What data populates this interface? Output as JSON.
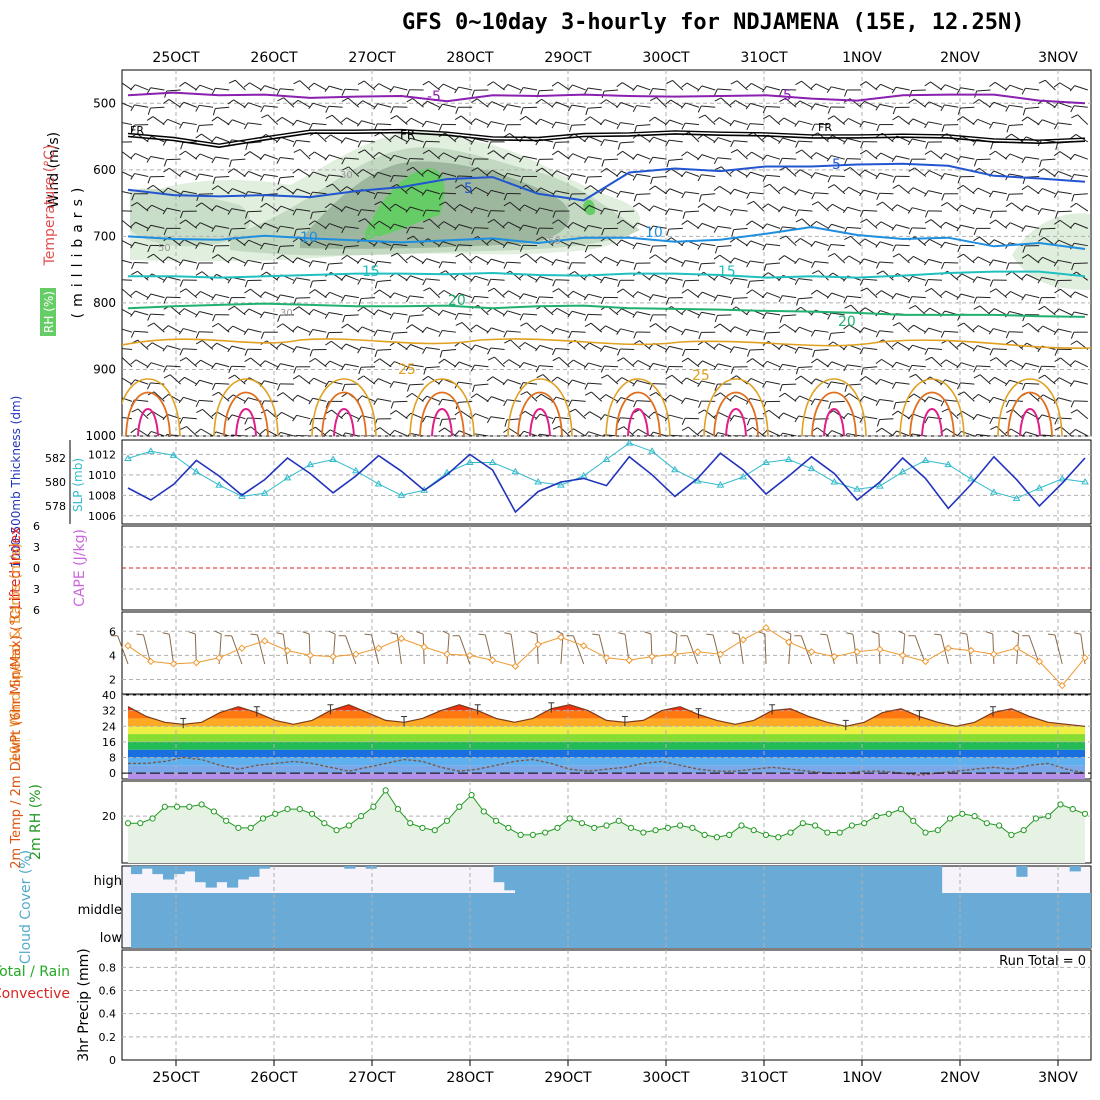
{
  "title": "GFS 0~10day 3-hourly for NDJAMENA (15E, 12.25N)",
  "colors": {
    "isotherm_m5": "#8a1fb0",
    "isotherm_5": "#2255d0",
    "isotherm_10": "#1e8fe0",
    "isotherm_15": "#20c0c0",
    "isotherm_20": "#20b070",
    "isotherm_25": "#e0a020",
    "isotherm_30": "#e07020",
    "isotherm_35": "#e0208a",
    "freezing": "#000000",
    "rh": "#44bb44",
    "thickness": "#2233bb",
    "slp": "#33bbcc",
    "lifted_index": "#dd2222",
    "cape": "#cc66dd",
    "wind": "#ee9933",
    "temp": "#dd5511",
    "rh2m": "#229922",
    "cloud": "#6aaad6",
    "precip_total": "#22aa22",
    "precip_convective": "#dd2222"
  },
  "chart_data": [
    {
      "panel": "upper-air",
      "type": "contour",
      "xlabel_ticks": [
        "25OCT",
        "26OCT",
        "27OCT",
        "28OCT",
        "29OCT",
        "30OCT",
        "31OCT",
        "1NOV",
        "2NOV",
        "3NOV"
      ],
      "ylabel": "(millibars)",
      "y_ticks": [
        500,
        600,
        700,
        800,
        900,
        1000
      ],
      "ylim": [
        1000,
        450
      ],
      "legend_labels": [
        "Wind (m/s)",
        "Temperature (°C)",
        "RH (%)"
      ],
      "contour_labels": [
        "-5",
        "5",
        "10",
        "15",
        "20",
        "25",
        "FR",
        "30",
        "50"
      ],
      "isotherms": [
        {
          "name": "-5",
          "pressure_mb": [
            488,
            484,
            488,
            487,
            492,
            490,
            489,
            497,
            488,
            489,
            487,
            489,
            490,
            489,
            488,
            493,
            496,
            488,
            487,
            487,
            496,
            500
          ]
        },
        {
          "name": "FR",
          "pressure_mb": [
            550,
            556,
            566,
            555,
            545,
            545,
            544,
            548,
            555,
            556,
            550,
            549,
            546,
            548,
            549,
            552,
            552,
            551,
            552,
            558,
            560,
            557
          ]
        },
        {
          "name": "5",
          "pressure_mb": [
            630,
            638,
            640,
            638,
            641,
            632,
            626,
            614,
            611,
            636,
            646,
            604,
            598,
            602,
            595,
            595,
            592,
            591,
            594,
            609,
            613,
            618
          ]
        },
        {
          "name": "10",
          "pressure_mb": [
            700,
            704,
            705,
            699,
            703,
            706,
            709,
            706,
            703,
            710,
            702,
            702,
            708,
            705,
            696,
            686,
            698,
            704,
            702,
            715,
            710,
            719
          ]
        },
        {
          "name": "15",
          "pressure_mb": [
            760,
            760,
            762,
            760,
            758,
            756,
            756,
            757,
            755,
            758,
            759,
            756,
            756,
            758,
            762,
            760,
            762,
            759,
            755,
            753,
            753,
            760
          ]
        },
        {
          "name": "20",
          "pressure_mb": [
            808,
            805,
            803,
            801,
            803,
            805,
            805,
            804,
            808,
            805,
            804,
            808,
            809,
            810,
            812,
            813,
            815,
            818,
            818,
            818,
            820,
            821
          ]
        }
      ]
    },
    {
      "panel": "thickness-slp",
      "type": "line",
      "y_left_label": "1000-500mb Thickness (dm)",
      "y_left_ticks": [
        578,
        580,
        582
      ],
      "y_left_lim": [
        576.5,
        583.5
      ],
      "y_right_label": "SLP (mb)",
      "y_right_ticks": [
        1006,
        1008,
        1010,
        1012
      ],
      "y_right_lim": [
        1005.2,
        1013.4
      ],
      "series": [
        {
          "name": "1000-500mb Thickness (dm)",
          "axis": "left",
          "values": [
            579.5,
            578.5,
            579.8,
            581.8,
            580.5,
            578.9,
            580.2,
            582.0,
            580.7,
            579.1,
            580.5,
            582.2,
            580.9,
            579.3,
            580.6,
            582.3,
            581.0,
            577.5,
            579.2,
            580.0,
            580.3,
            579.7,
            582.1,
            580.6,
            578.8,
            580.3,
            582.4,
            581.0,
            579.0,
            580.5,
            582.1,
            580.7,
            578.5,
            580.0,
            582.0,
            580.3,
            577.8,
            579.8,
            582.1,
            580.2,
            578.0,
            579.9,
            582.0
          ]
        },
        {
          "name": "SLP (mb)",
          "axis": "right",
          "values": [
            1011.6,
            1012.3,
            1011.9,
            1010.3,
            1009.0,
            1007.9,
            1008.2,
            1009.7,
            1011.0,
            1011.5,
            1010.4,
            1009.1,
            1008.0,
            1008.5,
            1010.2,
            1011.2,
            1011.2,
            1010.3,
            1009.3,
            1009.0,
            1009.9,
            1011.5,
            1013.1,
            1012.3,
            1010.5,
            1009.4,
            1009.0,
            1009.8,
            1011.2,
            1011.5,
            1010.6,
            1009.3,
            1008.6,
            1008.9,
            1010.3,
            1011.4,
            1011.0,
            1009.6,
            1008.3,
            1007.7,
            1008.7,
            1009.6,
            1009.3
          ]
        }
      ]
    },
    {
      "panel": "stability",
      "type": "line",
      "ylabel_left": "Lifted Index",
      "ylabel_right": "CAPE (J/kg)",
      "y_ticks": [
        "6",
        "3",
        "0",
        "3",
        "6"
      ],
      "ylim": [
        6,
        -6
      ]
    },
    {
      "panel": "10m-wind",
      "type": "line",
      "ylabel": "10m Wind Speed & Barbs (m/s)",
      "y_ticks": [
        2,
        4,
        6
      ],
      "ylim": [
        0.8,
        7.6
      ],
      "series": [
        {
          "name": "10m Wind Speed",
          "values": [
            4.8,
            3.5,
            3.3,
            3.4,
            3.8,
            4.6,
            5.2,
            4.4,
            4.0,
            3.9,
            4.1,
            4.6,
            5.4,
            4.7,
            4.1,
            4.0,
            3.6,
            3.1,
            4.9,
            5.5,
            4.8,
            3.8,
            3.6,
            3.9,
            4.1,
            4.3,
            4.1,
            5.3,
            6.3,
            5.1,
            4.3,
            3.9,
            4.3,
            4.5,
            4.0,
            3.5,
            4.6,
            4.4,
            4.1,
            4.6,
            3.5,
            1.5,
            3.8
          ]
        }
      ]
    },
    {
      "panel": "2m-temp",
      "type": "area",
      "ylabel": "2m Temp / 2m DewPt (6hr Min/Max) (°C)",
      "y_ticks": [
        0,
        8,
        16,
        24,
        32,
        40
      ],
      "ylim": [
        -3,
        40
      ],
      "series": [
        {
          "name": "2m Temp",
          "values": [
            34,
            29,
            26,
            25,
            26,
            31,
            34,
            31,
            27,
            25,
            27,
            32,
            35,
            31,
            27,
            26,
            28,
            32,
            35,
            32,
            28,
            26,
            28,
            33,
            35,
            32,
            27,
            26,
            27,
            32,
            34,
            30,
            27,
            25,
            27,
            32,
            33,
            29,
            26,
            24,
            26,
            31,
            33,
            29,
            26,
            24,
            26,
            31,
            33,
            29,
            26,
            25,
            24
          ]
        },
        {
          "name": "2m DewPt",
          "values": [
            5,
            5,
            6,
            8,
            7,
            4,
            2,
            4,
            5,
            6,
            5,
            3,
            1,
            3,
            5,
            7,
            6,
            3,
            1,
            2,
            4,
            6,
            7,
            5,
            2,
            1,
            2,
            3,
            5,
            6,
            4,
            2,
            1,
            1,
            2,
            3,
            2,
            1,
            0,
            0,
            1,
            1,
            0,
            -1,
            0,
            1,
            2,
            3,
            2,
            4,
            5,
            2,
            0
          ]
        }
      ]
    },
    {
      "panel": "2m-rh",
      "type": "area",
      "ylabel": "2m RH (%)",
      "y_ticks": [
        20
      ],
      "ylim": [
        0,
        35
      ],
      "series": [
        {
          "name": "2m RH",
          "values": [
            17,
            17,
            19,
            24,
            24,
            24,
            25,
            22,
            18,
            15,
            15,
            19,
            21,
            23,
            23,
            21,
            17,
            14,
            16,
            20,
            24,
            31,
            23,
            17,
            15,
            14,
            18,
            24,
            29,
            22,
            18,
            15,
            12,
            12,
            13,
            15,
            19,
            17,
            15,
            16,
            18,
            15,
            13,
            14,
            15,
            16,
            15,
            12,
            11,
            12,
            16,
            14,
            12,
            11,
            13,
            17,
            16,
            13,
            13,
            16,
            17,
            20,
            21,
            23,
            18,
            13,
            14,
            19,
            21,
            20,
            17,
            16,
            12,
            14,
            19,
            20,
            25,
            23,
            21
          ]
        }
      ]
    },
    {
      "panel": "cloud-cover",
      "type": "area",
      "ylabel": "Cloud Cover (%)",
      "y_ticks": [
        "high",
        "middle",
        "low"
      ],
      "layers": [
        {
          "name": "low",
          "coverage": 100
        },
        {
          "name": "middle",
          "coverage": 100
        },
        {
          "name": "high",
          "values": [
            30,
            10,
            30,
            50,
            30,
            20,
            60,
            80,
            60,
            80,
            50,
            40,
            10,
            0,
            0,
            0,
            0,
            0,
            0,
            0,
            10,
            0,
            10,
            0,
            0,
            0,
            0,
            0,
            0,
            0,
            0,
            0,
            0,
            0,
            60,
            90,
            100,
            100,
            100,
            100,
            100,
            100,
            100,
            100,
            100,
            100,
            100,
            100,
            100,
            100,
            100,
            100,
            100,
            100,
            100,
            100,
            100,
            100,
            100,
            100,
            100,
            100,
            100,
            100,
            100,
            100,
            100,
            100,
            100,
            100,
            100,
            100,
            100,
            100,
            100,
            100,
            0,
            0,
            0,
            0,
            0,
            0,
            0,
            40,
            0,
            0,
            0,
            0,
            20,
            0
          ]
        }
      ]
    },
    {
      "panel": "precip",
      "type": "bar",
      "ylabel": "3hr Precip (mm)",
      "legend_left": [
        "Total / Rain",
        "Convective"
      ],
      "y_ticks": [
        0,
        0.2,
        0.4,
        0.6,
        0.8
      ],
      "ylim": [
        0,
        0.95
      ],
      "annotation": "Run Total = 0",
      "values": []
    }
  ]
}
